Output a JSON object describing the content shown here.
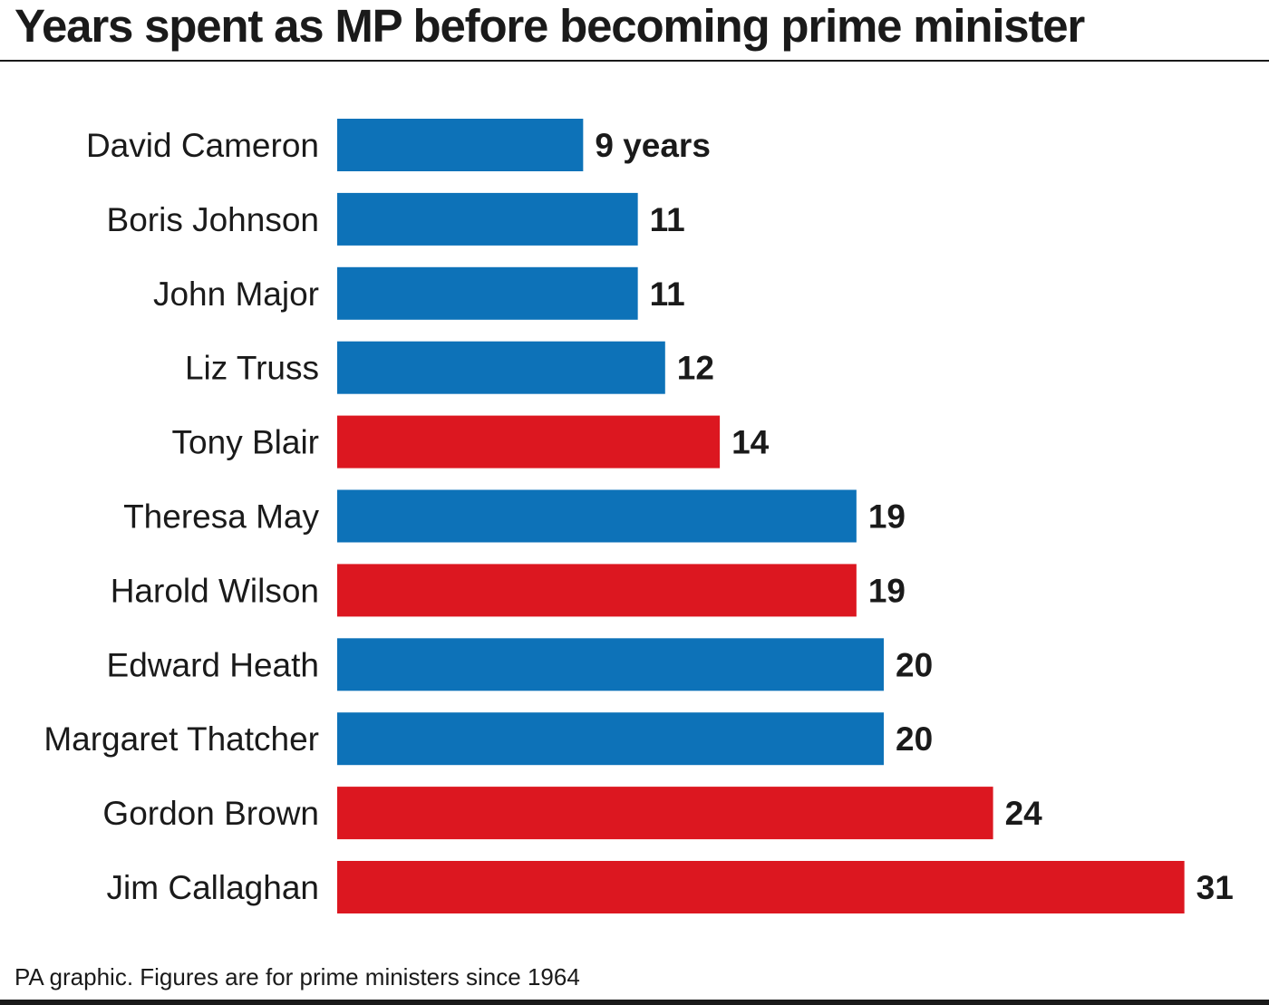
{
  "title": "Years spent as MP before becoming prime minister",
  "footer": "PA graphic. Figures are for prime ministers since 1964",
  "colors": {
    "conservative": "#0d72b8",
    "labour": "#dc1720",
    "text": "#1a1a1a"
  },
  "chart_data": {
    "type": "bar",
    "orientation": "horizontal",
    "title": "Years spent as MP before becoming prime minister",
    "xlabel": "",
    "ylabel": "",
    "xlim": [
      0,
      31
    ],
    "grid": false,
    "legend": "none",
    "value_suffix_first": " years",
    "categories": [
      "David Cameron",
      "Boris Johnson",
      "John Major",
      "Liz Truss",
      "Tony Blair",
      "Theresa May",
      "Harold Wilson",
      "Edward Heath",
      "Margaret Thatcher",
      "Gordon Brown",
      "Jim Callaghan"
    ],
    "values": [
      9,
      11,
      11,
      12,
      14,
      19,
      19,
      20,
      20,
      24,
      31
    ],
    "bar_colors": [
      "#0d72b8",
      "#0d72b8",
      "#0d72b8",
      "#0d72b8",
      "#dc1720",
      "#0d72b8",
      "#dc1720",
      "#0d72b8",
      "#0d72b8",
      "#dc1720",
      "#dc1720"
    ]
  }
}
